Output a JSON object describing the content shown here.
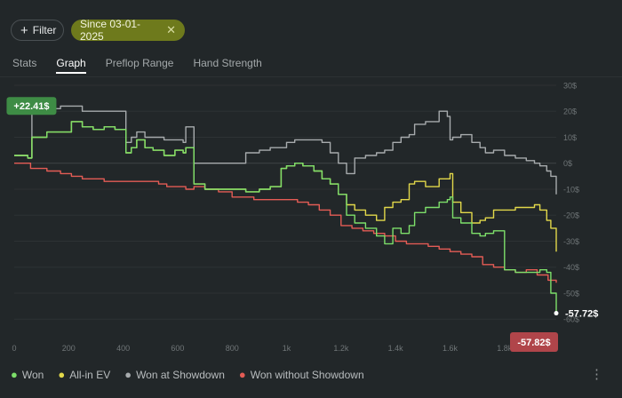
{
  "filters": {
    "filter_label": "Filter",
    "date_label": "Since 03-01-2025",
    "clear_icon": "close-icon"
  },
  "tabs": [
    {
      "label": "Stats",
      "active": false
    },
    {
      "label": "Graph",
      "active": true
    },
    {
      "label": "Preflop Range",
      "active": false
    },
    {
      "label": "Hand Strength",
      "active": false
    }
  ],
  "menu_icon": "more-vertical-icon",
  "chart_data": {
    "type": "line",
    "x_ticks": [
      "0",
      "200",
      "400",
      "600",
      "800",
      "1k",
      "1.2k",
      "1.4k",
      "1.6k",
      "1.8k"
    ],
    "x_tick_values": [
      0,
      200,
      400,
      600,
      800,
      1000,
      1200,
      1400,
      1600,
      1800
    ],
    "y_ticks": [
      "30$",
      "20$",
      "10$",
      "0$",
      "-10$",
      "-20$",
      "-30$",
      "-40$",
      "-50$",
      "-60$"
    ],
    "y_tick_values": [
      30,
      20,
      10,
      0,
      -10,
      -20,
      -30,
      -40,
      -50,
      -60
    ],
    "xlim": [
      0,
      1990
    ],
    "ylim": [
      -63,
      30
    ],
    "grid": true,
    "legend": "bottom-left",
    "annotations": [
      {
        "label": "+22.41$",
        "x": 70,
        "y": 22.41,
        "color": "#3e8c45"
      },
      {
        "label": "-57.72$",
        "x": 1990,
        "y": -57.72,
        "color": "#ffffff"
      },
      {
        "label": "-57.82$",
        "x": 1990,
        "y": -57.82,
        "color": "#b0454a"
      }
    ],
    "series": [
      {
        "name": "Won",
        "color": "#7ddf6a",
        "x": [
          0,
          50,
          65,
          120,
          170,
          210,
          250,
          290,
          330,
          370,
          400,
          410,
          430,
          450,
          480,
          510,
          550,
          590,
          620,
          630,
          660,
          700,
          750,
          800,
          850,
          900,
          940,
          980,
          1000,
          1030,
          1060,
          1100,
          1130,
          1160,
          1190,
          1220,
          1250,
          1290,
          1330,
          1360,
          1390,
          1420,
          1450,
          1470,
          1510,
          1560,
          1590,
          1600,
          1610,
          1640,
          1680,
          1710,
          1730,
          1760,
          1800,
          1840,
          1880,
          1910,
          1930,
          1955,
          1970,
          1990
        ],
        "y": [
          3,
          2,
          10,
          12,
          12,
          16,
          14,
          13,
          14,
          13,
          13,
          4,
          6,
          9,
          6,
          5,
          3,
          5,
          4,
          6,
          -8,
          -10,
          -10,
          -10,
          -11,
          -10,
          -9,
          -2,
          -1,
          0,
          -1,
          -3,
          -6,
          -8,
          -12,
          -20,
          -23,
          -25,
          -28,
          -31,
          -25,
          -27,
          -24,
          -19,
          -17,
          -15,
          -14,
          -13,
          -21,
          -23,
          -27,
          -28,
          -27,
          -26,
          -41,
          -42,
          -42,
          -42,
          -41,
          -42,
          -50,
          -57.7
        ]
      },
      {
        "name": "All-in EV",
        "color": "#e2d84a",
        "x": [
          0,
          50,
          65,
          120,
          170,
          210,
          250,
          290,
          330,
          370,
          400,
          410,
          430,
          450,
          480,
          510,
          550,
          590,
          620,
          630,
          660,
          700,
          750,
          800,
          850,
          900,
          940,
          980,
          1000,
          1030,
          1060,
          1100,
          1130,
          1160,
          1190,
          1220,
          1250,
          1290,
          1330,
          1360,
          1390,
          1420,
          1450,
          1470,
          1510,
          1560,
          1590,
          1600,
          1610,
          1640,
          1680,
          1710,
          1730,
          1760,
          1800,
          1840,
          1880,
          1910,
          1930,
          1955,
          1970,
          1990
        ],
        "y": [
          3,
          2,
          10,
          12,
          12,
          16,
          14,
          13,
          14,
          13,
          13,
          4,
          6,
          9,
          6,
          5,
          3,
          5,
          4,
          6,
          -8,
          -10,
          -10,
          -10,
          -11,
          -10,
          -9,
          -2,
          -1,
          0,
          -1,
          -3,
          -6,
          -8,
          -12,
          -16,
          -18,
          -20,
          -22,
          -17,
          -15,
          -14,
          -8,
          -7,
          -9,
          -6,
          -6,
          -4,
          -15,
          -19,
          -23,
          -22,
          -21,
          -18,
          -18,
          -17,
          -17,
          -16,
          -18,
          -22,
          -25,
          -34
        ]
      },
      {
        "name": "Won at Showdown",
        "color": "#a7abad",
        "x": [
          0,
          50,
          65,
          120,
          170,
          210,
          250,
          290,
          330,
          370,
          400,
          410,
          430,
          450,
          480,
          510,
          550,
          590,
          620,
          630,
          660,
          700,
          750,
          800,
          850,
          900,
          940,
          980,
          1000,
          1030,
          1060,
          1100,
          1130,
          1160,
          1190,
          1220,
          1250,
          1290,
          1330,
          1360,
          1390,
          1420,
          1450,
          1470,
          1510,
          1560,
          1590,
          1600,
          1610,
          1640,
          1680,
          1710,
          1730,
          1760,
          1800,
          1840,
          1880,
          1910,
          1930,
          1955,
          1970,
          1990
        ],
        "y": [
          3,
          2,
          20,
          21,
          22,
          22,
          20,
          20,
          20,
          20,
          20,
          8,
          10,
          12,
          10,
          10,
          9,
          9,
          8,
          14,
          0,
          0,
          0,
          0,
          4,
          5,
          6,
          6,
          8,
          9,
          9,
          9,
          8,
          4,
          0,
          -4,
          2,
          3,
          4,
          5,
          8,
          10,
          11,
          15,
          16,
          20,
          18,
          9,
          10,
          11,
          8,
          6,
          4,
          5,
          3,
          2,
          1,
          0,
          -1,
          -3,
          -5,
          -12
        ]
      },
      {
        "name": "Won without Showdown",
        "color": "#e45c55",
        "x": [
          0,
          60,
          120,
          170,
          210,
          250,
          290,
          330,
          370,
          410,
          450,
          490,
          530,
          560,
          600,
          630,
          660,
          700,
          750,
          800,
          840,
          880,
          920,
          960,
          1000,
          1040,
          1080,
          1120,
          1160,
          1200,
          1240,
          1280,
          1320,
          1360,
          1400,
          1440,
          1480,
          1520,
          1560,
          1600,
          1640,
          1680,
          1720,
          1760,
          1800,
          1840,
          1880,
          1920,
          1960,
          1990
        ],
        "y": [
          0,
          -2,
          -3,
          -4,
          -5,
          -6,
          -6,
          -7,
          -7,
          -7,
          -7,
          -7,
          -8,
          -9,
          -9,
          -10,
          -9,
          -10,
          -11,
          -13,
          -13,
          -14,
          -14,
          -14,
          -14,
          -15,
          -16,
          -18,
          -20,
          -24,
          -25,
          -26,
          -27,
          -28,
          -30,
          -31,
          -31,
          -32,
          -33,
          -34,
          -35,
          -36,
          -39,
          -40,
          -41,
          -42,
          -41,
          -43,
          -45,
          -46
        ]
      }
    ]
  }
}
